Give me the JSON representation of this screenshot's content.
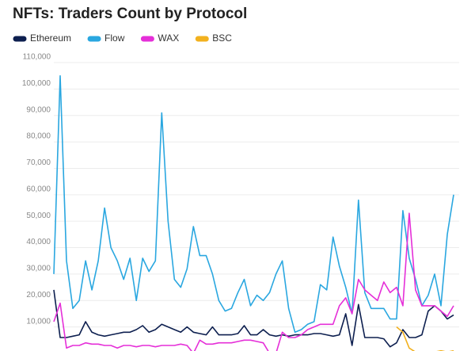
{
  "chart_data": {
    "type": "line",
    "title": "NFTs: Traders Count by Protocol",
    "ylim": [
      0,
      110000
    ],
    "yticks": [
      {
        "value": 10000,
        "label": "10,000"
      },
      {
        "value": 20000,
        "label": "20,000"
      },
      {
        "value": 30000,
        "label": "30,000"
      },
      {
        "value": 40000,
        "label": "40,000"
      },
      {
        "value": 50000,
        "label": "50,000"
      },
      {
        "value": 60000,
        "label": "60,000"
      },
      {
        "value": 70000,
        "label": "70,000"
      },
      {
        "value": 80000,
        "label": "80,000"
      },
      {
        "value": 90000,
        "label": "90,000"
      },
      {
        "value": 100000,
        "label": "100,000"
      },
      {
        "value": 110000,
        "label": "110,000"
      }
    ],
    "grid": true,
    "series": [
      {
        "name": "Ethereum",
        "color": "#0d1f4f",
        "values": [
          24000,
          6000,
          6000,
          6500,
          7000,
          12000,
          8000,
          7000,
          6500,
          7000,
          7500,
          8000,
          8000,
          9000,
          10500,
          8000,
          9000,
          11000,
          10000,
          9000,
          8000,
          10000,
          8000,
          7500,
          7000,
          10000,
          7000,
          7000,
          7000,
          7500,
          10500,
          7000,
          7000,
          9000,
          7000,
          6500,
          7000,
          6500,
          7000,
          7000,
          7000,
          7500,
          7500,
          7000,
          6500,
          7000,
          15000,
          3000,
          18500,
          6000,
          6000,
          6000,
          5500,
          2500,
          4000,
          9000,
          6000,
          6000,
          7000,
          16000,
          18000,
          16000,
          13000,
          14500
        ]
      },
      {
        "name": "Flow",
        "color": "#2aa7e0",
        "values": [
          30000,
          105000,
          35000,
          17000,
          20000,
          35000,
          24000,
          35000,
          55000,
          40000,
          35000,
          28000,
          36000,
          20000,
          36000,
          31000,
          35000,
          91000,
          50000,
          28000,
          25000,
          32000,
          48000,
          37000,
          37000,
          30000,
          20000,
          16000,
          17000,
          23000,
          28000,
          18000,
          22000,
          20000,
          23000,
          30000,
          35000,
          17000,
          8000,
          9000,
          11000,
          12000,
          26000,
          24000,
          44000,
          33000,
          25000,
          15000,
          58000,
          23000,
          17000,
          17000,
          17000,
          13000,
          13000,
          54000,
          36000,
          28000,
          18000,
          22000,
          30000,
          18000,
          45000,
          60000
        ]
      },
      {
        "name": "WAX",
        "color": "#e52fd8",
        "values": [
          12000,
          19000,
          2000,
          3000,
          3000,
          4000,
          3500,
          3500,
          3000,
          3000,
          2000,
          3000,
          3000,
          2500,
          3000,
          3000,
          2500,
          3000,
          3000,
          3000,
          3500,
          3000,
          0,
          5000,
          3500,
          3500,
          4000,
          4000,
          4000,
          4500,
          5000,
          5000,
          4500,
          4000,
          0,
          0,
          8000,
          6000,
          6000,
          7000,
          9000,
          10000,
          11000,
          11000,
          11000,
          18000,
          21000,
          15000,
          28000,
          24000,
          22000,
          20000,
          27000,
          23000,
          25000,
          18000,
          53000,
          24000,
          18000,
          18000,
          18000,
          16000,
          14000,
          18000
        ]
      },
      {
        "name": "BSC",
        "color": "#f2b11e",
        "values": [
          null,
          null,
          null,
          null,
          null,
          null,
          null,
          null,
          null,
          null,
          null,
          null,
          null,
          null,
          null,
          null,
          null,
          null,
          null,
          null,
          null,
          null,
          null,
          null,
          null,
          null,
          null,
          null,
          null,
          null,
          null,
          null,
          null,
          null,
          null,
          null,
          null,
          null,
          null,
          null,
          null,
          null,
          null,
          null,
          null,
          null,
          null,
          null,
          null,
          null,
          null,
          null,
          null,
          null,
          10000,
          8000,
          2000,
          500,
          500,
          500,
          500,
          1000,
          500,
          1000
        ]
      }
    ]
  }
}
